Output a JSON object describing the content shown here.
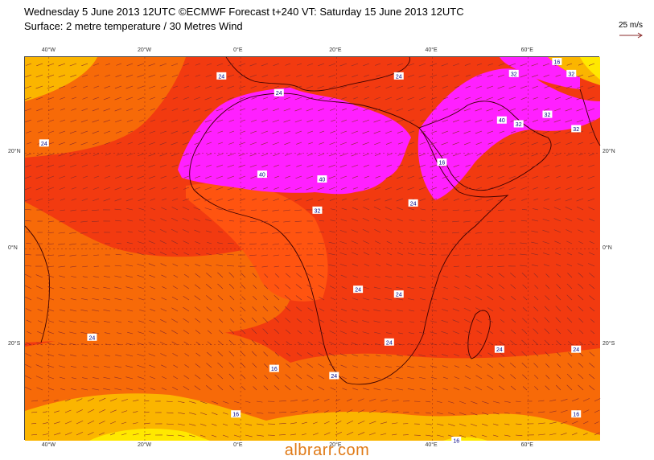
{
  "header": {
    "title_line1": "Wednesday 5 June 2013 12UTC ©ECMWF Forecast t+240 VT: Saturday 15 June 2013 12UTC",
    "title_line2": "Surface: 2 metre temperature / 30 Metres Wind",
    "wind_scale_label": "25 m/s"
  },
  "map": {
    "projection": "lat-lon",
    "lon_range": [
      -45,
      75
    ],
    "lat_range": [
      -40,
      40
    ],
    "top_lon_labels": [
      "40°W",
      "20°W",
      "0°E",
      "20°E",
      "40°E",
      "60°E"
    ],
    "bottom_lon_labels": [
      "40°W",
      "20°W",
      "0°E",
      "20°E",
      "40°E",
      "60°E"
    ],
    "left_lat_labels": [
      "20°N",
      "0°N",
      "20°S"
    ],
    "right_lat_labels": [
      "20°N",
      "0°N",
      "20°S"
    ],
    "contour_labels": [
      {
        "text": "24",
        "lon": -4,
        "lat": 36
      },
      {
        "text": "24",
        "lon": 8,
        "lat": 32.5
      },
      {
        "text": "24",
        "lon": 33,
        "lat": 36
      },
      {
        "text": "32",
        "lon": 57,
        "lat": 36.5
      },
      {
        "text": "16",
        "lon": 66,
        "lat": 39
      },
      {
        "text": "32",
        "lon": 69,
        "lat": 36.5
      },
      {
        "text": "40",
        "lon": 54.5,
        "lat": 26.8
      },
      {
        "text": "32",
        "lon": 58,
        "lat": 26
      },
      {
        "text": "32",
        "lon": 64,
        "lat": 28
      },
      {
        "text": "32",
        "lon": 70,
        "lat": 25
      },
      {
        "text": "24",
        "lon": -41,
        "lat": 22
      },
      {
        "text": "40",
        "lon": 4.5,
        "lat": 15.5
      },
      {
        "text": "40",
        "lon": 17,
        "lat": 14.5
      },
      {
        "text": "32",
        "lon": 16,
        "lat": 8
      },
      {
        "text": "24",
        "lon": 36,
        "lat": 9.5
      },
      {
        "text": "16",
        "lon": 42,
        "lat": 18
      },
      {
        "text": "24",
        "lon": 24.5,
        "lat": -8.5
      },
      {
        "text": "24",
        "lon": 33,
        "lat": -9.5
      },
      {
        "text": "24",
        "lon": -31,
        "lat": -18.5
      },
      {
        "text": "24",
        "lon": 31,
        "lat": -19.5
      },
      {
        "text": "24",
        "lon": 54,
        "lat": -21
      },
      {
        "text": "24",
        "lon": 70,
        "lat": -21
      },
      {
        "text": "16",
        "lon": 7,
        "lat": -25
      },
      {
        "text": "24",
        "lon": 19.5,
        "lat": -26.5
      },
      {
        "text": "16",
        "lon": -1,
        "lat": -34.5
      },
      {
        "text": "16",
        "lon": 45,
        "lat": -40
      },
      {
        "text": "16",
        "lon": 70,
        "lat": -34.5
      }
    ]
  },
  "colors": {
    "map_background": "#f23a10",
    "band_16_24": "#f76a08",
    "band_8_16": "#fbb500",
    "band_0_8": "#ffe800",
    "band_24_32": "#ff5410",
    "band_32_40": "#f02a12",
    "band_above_40": "#ff20ff",
    "wind_arrows": "#8a2a2a",
    "coastline": "#3a0000"
  },
  "watermark": "albrarr.com"
}
